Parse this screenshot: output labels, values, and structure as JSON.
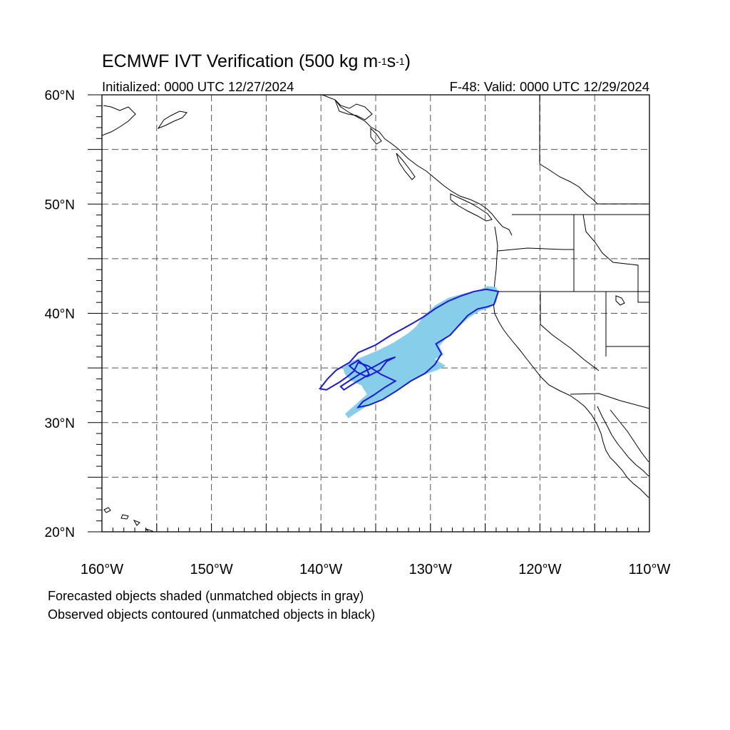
{
  "title": {
    "prefix": "ECMWF IVT Verification (500 kg m",
    "sup1": "-1",
    "mid": "s",
    "sup2": "-1",
    "suffix": ")"
  },
  "initialized": "Initialized: 0000 UTC 12/27/2024",
  "valid": "F-48: Valid: 0000 UTC 12/29/2024",
  "map": {
    "lon_range": [
      -160,
      -110
    ],
    "lat_range": [
      20,
      60
    ],
    "lon_labels": [
      "160°W",
      "150°W",
      "140°W",
      "130°W",
      "120°W",
      "110°W"
    ],
    "lat_labels": [
      "60°N",
      "50°N",
      "40°N",
      "30°N",
      "20°N"
    ],
    "grid_spacing_deg": 5,
    "grid_style": "dashed",
    "forecast_object_color": "#87ceeb",
    "observed_contour_color": "#1a1adb",
    "forecast_object_lonlat": [
      [
        -124.0,
        42.4
      ],
      [
        -123.8,
        41.8
      ],
      [
        -124.0,
        41.0
      ],
      [
        -124.6,
        40.5
      ],
      [
        -125.5,
        40.2
      ],
      [
        -126.5,
        39.6
      ],
      [
        -127.5,
        38.7
      ],
      [
        -128.5,
        37.8
      ],
      [
        -129.2,
        37.0
      ],
      [
        -128.8,
        36.2
      ],
      [
        -129.6,
        35.8
      ],
      [
        -128.6,
        35.2
      ],
      [
        -129.4,
        34.8
      ],
      [
        -130.5,
        34.4
      ],
      [
        -131.8,
        33.8
      ],
      [
        -133.0,
        33.0
      ],
      [
        -134.2,
        32.3
      ],
      [
        -135.5,
        31.7
      ],
      [
        -136.6,
        31.0
      ],
      [
        -137.5,
        30.4
      ],
      [
        -137.8,
        30.8
      ],
      [
        -136.8,
        31.7
      ],
      [
        -135.8,
        32.6
      ],
      [
        -136.3,
        33.4
      ],
      [
        -137.2,
        33.8
      ],
      [
        -137.8,
        34.4
      ],
      [
        -138.0,
        35.0
      ],
      [
        -137.2,
        35.6
      ],
      [
        -136.0,
        36.1
      ],
      [
        -134.8,
        36.6
      ],
      [
        -133.4,
        37.3
      ],
      [
        -132.0,
        38.2
      ],
      [
        -131.3,
        38.8
      ],
      [
        -130.6,
        39.8
      ],
      [
        -129.6,
        40.7
      ],
      [
        -128.4,
        41.4
      ],
      [
        -127.0,
        41.8
      ],
      [
        -125.4,
        42.2
      ],
      [
        -124.8,
        42.5
      ]
    ],
    "observed_outer_lonlat": [
      [
        -140.1,
        33.1
      ],
      [
        -139.4,
        34.0
      ],
      [
        -138.6,
        34.8
      ],
      [
        -137.4,
        35.5
      ],
      [
        -136.6,
        36.4
      ],
      [
        -135.0,
        37.1
      ],
      [
        -133.6,
        38.0
      ],
      [
        -132.5,
        38.6
      ],
      [
        -131.6,
        39.1
      ],
      [
        -130.6,
        39.7
      ],
      [
        -129.6,
        40.4
      ],
      [
        -128.4,
        41.1
      ],
      [
        -127.2,
        41.6
      ],
      [
        -126.0,
        42.0
      ],
      [
        -124.9,
        42.2
      ],
      [
        -123.8,
        42.0
      ],
      [
        -124.2,
        40.8
      ],
      [
        -124.8,
        40.6
      ],
      [
        -125.7,
        40.4
      ],
      [
        -126.6,
        39.8
      ],
      [
        -127.4,
        38.9
      ],
      [
        -128.2,
        38.0
      ],
      [
        -129.5,
        37.2
      ],
      [
        -129.0,
        36.3
      ],
      [
        -129.6,
        35.3
      ],
      [
        -130.5,
        34.5
      ],
      [
        -131.8,
        33.8
      ],
      [
        -133.1,
        32.9
      ],
      [
        -134.4,
        32.1
      ],
      [
        -135.6,
        31.6
      ],
      [
        -136.6,
        31.4
      ],
      [
        -136.2,
        31.9
      ],
      [
        -135.2,
        32.5
      ],
      [
        -134.2,
        33.2
      ],
      [
        -133.2,
        33.8
      ],
      [
        -134.5,
        34.4
      ],
      [
        -135.7,
        35.2
      ],
      [
        -136.6,
        35.5
      ],
      [
        -137.0,
        34.7
      ],
      [
        -137.6,
        34.2
      ],
      [
        -138.3,
        33.7
      ],
      [
        -139.5,
        33.0
      ]
    ],
    "observed_inner_lonlat": [
      [
        -137.9,
        33.0
      ],
      [
        -136.8,
        33.7
      ],
      [
        -135.6,
        34.4
      ],
      [
        -135.9,
        35.1
      ],
      [
        -136.6,
        35.7
      ],
      [
        -137.4,
        35.2
      ],
      [
        -136.7,
        34.6
      ],
      [
        -135.8,
        34.2
      ],
      [
        -134.6,
        34.8
      ],
      [
        -134.0,
        35.6
      ],
      [
        -133.2,
        36.0
      ],
      [
        -134.1,
        35.7
      ],
      [
        -135.0,
        35.2
      ],
      [
        -136.2,
        34.6
      ],
      [
        -137.3,
        33.9
      ],
      [
        -138.2,
        33.3
      ]
    ]
  },
  "legend_lines": [
    "Forecasted objects shaded (unmatched objects in gray)",
    "Observed objects contoured (unmatched objects in black)"
  ]
}
